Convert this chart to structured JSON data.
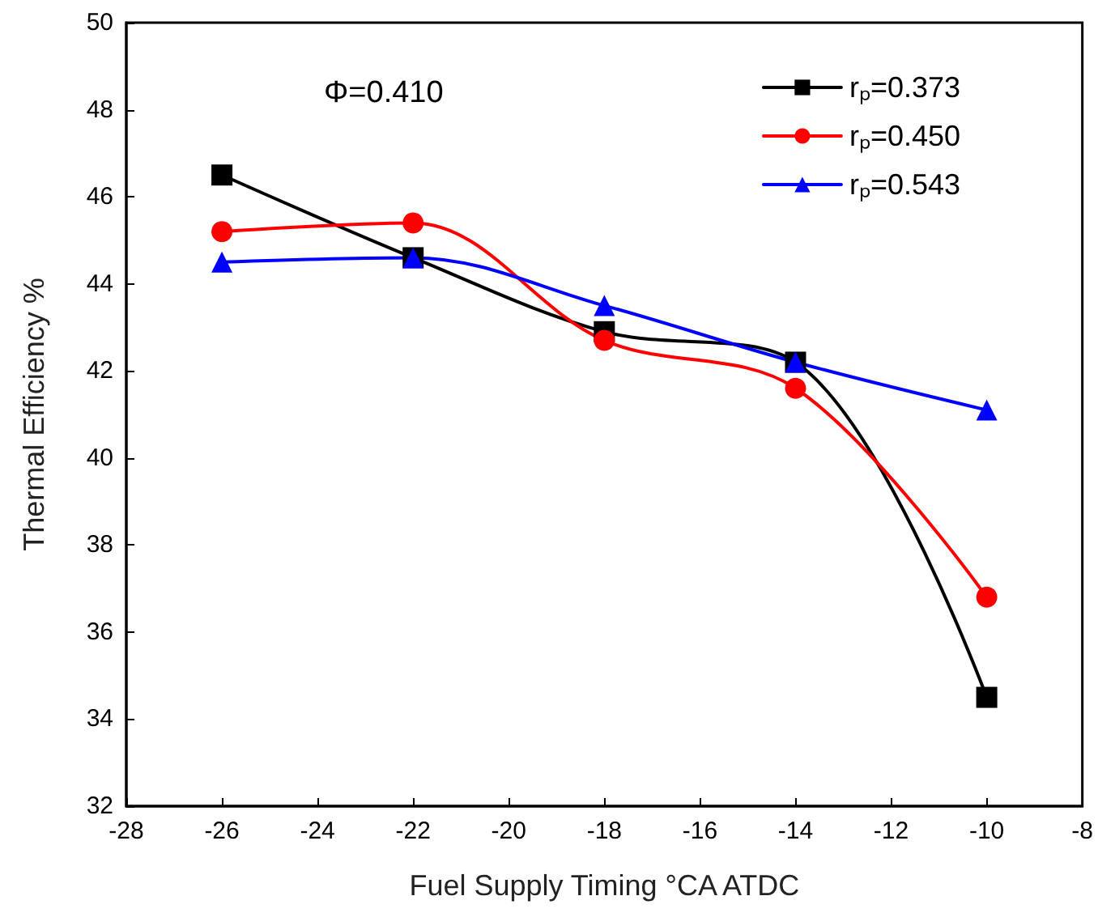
{
  "chart_data": {
    "type": "line",
    "xlabel": "Fuel Supply Timing °CA ATDC",
    "ylabel": "Thermal Efficiency %",
    "annotations": [
      "Φ=0.410"
    ],
    "x": [
      -26,
      -22,
      -18,
      -14,
      -10
    ],
    "series": [
      {
        "name": "rₚ=0.373",
        "color": "#000000",
        "marker": "square",
        "values": [
          46.5,
          44.6,
          42.9,
          42.2,
          34.5
        ]
      },
      {
        "name": "rₚ=0.450",
        "color": "#ff0000",
        "marker": "circle",
        "values": [
          45.2,
          45.4,
          42.7,
          41.6,
          36.8
        ]
      },
      {
        "name": "rₚ=0.543",
        "color": "#0000ff",
        "marker": "triangle",
        "values": [
          44.5,
          44.6,
          43.5,
          42.2,
          41.1
        ]
      }
    ],
    "xlim": [
      -28,
      -8
    ],
    "xticks": [
      -28,
      -26,
      -24,
      -22,
      -20,
      -18,
      -16,
      -14,
      -12,
      -10,
      -8
    ],
    "ylim": [
      32,
      50
    ],
    "yticks": [
      32,
      34,
      36,
      38,
      40,
      42,
      44,
      46,
      48,
      50
    ],
    "grid": false,
    "legend": "top right",
    "line_style": "solid"
  }
}
